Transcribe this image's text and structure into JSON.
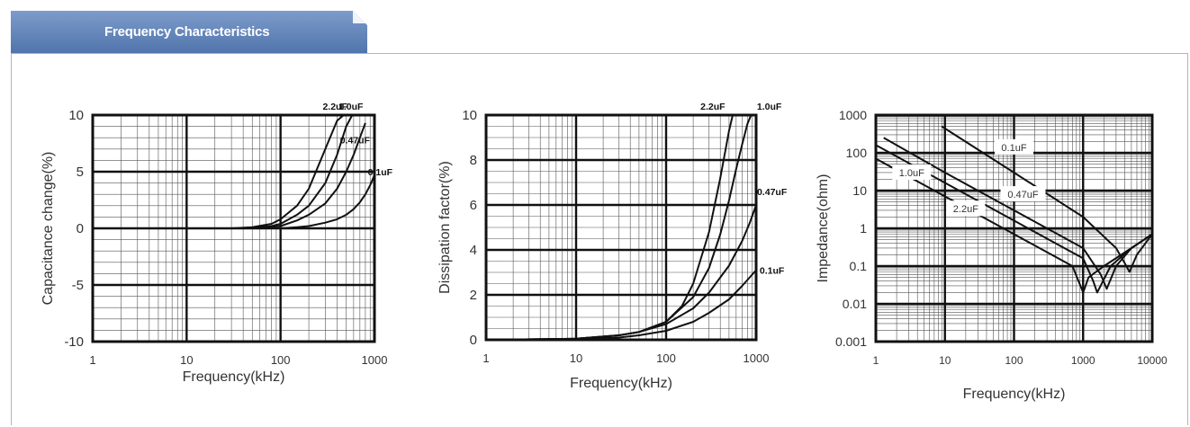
{
  "header": {
    "title": "Frequency Characteristics",
    "accent_color": "#5a7fb5",
    "border_color": "#a9b6c9"
  },
  "chart_data": [
    {
      "type": "line",
      "xscale": "log",
      "xlim": [
        1,
        1000
      ],
      "ylim": [
        -10,
        10
      ],
      "xticks": [
        "1",
        "10",
        "100",
        "1000"
      ],
      "yticks": [
        "10",
        "5",
        "0",
        "-5",
        "-10"
      ],
      "xlabel": "Frequency(kHz)",
      "ylabel": "Capacitance change(%)",
      "series": [
        {
          "name": "2.2uF",
          "x": [
            1,
            30,
            50,
            80,
            100,
            150,
            200,
            300,
            400,
            470
          ],
          "y": [
            0,
            0,
            0.1,
            0.4,
            0.8,
            2,
            3.5,
            7,
            9.5,
            10
          ]
        },
        {
          "name": "1.0uF",
          "x": [
            1,
            40,
            80,
            100,
            150,
            200,
            300,
            400,
            500,
            580
          ],
          "y": [
            0,
            0,
            0.2,
            0.4,
            1.2,
            2,
            4,
            6.5,
            9,
            10
          ]
        },
        {
          "name": "0.47uF",
          "x": [
            1,
            50,
            100,
            150,
            200,
            300,
            400,
            500,
            600,
            700,
            800
          ],
          "y": [
            0,
            0,
            0.2,
            0.7,
            1.2,
            2.2,
            3.5,
            5,
            6.5,
            8,
            9.3
          ]
        },
        {
          "name": "0.1uF",
          "x": [
            1,
            100,
            150,
            200,
            300,
            400,
            500,
            600,
            700,
            800,
            900,
            1000
          ],
          "y": [
            0,
            0,
            0.1,
            0.2,
            0.5,
            0.8,
            1.2,
            1.7,
            2.3,
            3,
            3.8,
            4.7
          ]
        }
      ],
      "labels": [
        {
          "text": "2.2uF",
          "x": 380,
          "y": 10.8
        },
        {
          "text": "1.0uF",
          "x": 560,
          "y": 10.8
        },
        {
          "text": "0.47uF",
          "x": 620,
          "y": 7.8
        },
        {
          "text": "0.1uF",
          "x": 1150,
          "y": 5.0
        }
      ]
    },
    {
      "type": "line",
      "xscale": "log",
      "xlim": [
        1,
        1000
      ],
      "ylim": [
        0,
        10
      ],
      "xticks": [
        "1",
        "10",
        "100",
        "1000"
      ],
      "yticks": [
        "10",
        "8",
        "6",
        "4",
        "2",
        "0"
      ],
      "xlabel": "Frequency(kHz)",
      "ylabel": "Dissipation factor(%)",
      "series": [
        {
          "name": "2.2uF",
          "x": [
            1,
            10,
            30,
            50,
            100,
            150,
            200,
            300,
            400,
            500,
            550
          ],
          "y": [
            0,
            0.05,
            0.2,
            0.35,
            0.8,
            1.5,
            2.5,
            4.8,
            7.2,
            9.3,
            10
          ]
        },
        {
          "name": "1.0uF",
          "x": [
            1,
            10,
            30,
            50,
            100,
            200,
            300,
            400,
            500,
            600,
            700,
            800,
            880
          ],
          "y": [
            0,
            0.05,
            0.2,
            0.35,
            0.8,
            1.9,
            3.2,
            4.7,
            6.2,
            7.6,
            8.7,
            9.6,
            10
          ]
        },
        {
          "name": "0.47uF",
          "x": [
            1,
            10,
            30,
            50,
            100,
            200,
            300,
            500,
            700,
            850,
            1000
          ],
          "y": [
            0,
            0.05,
            0.2,
            0.35,
            0.7,
            1.4,
            2.1,
            3.3,
            4.4,
            5.2,
            6
          ]
        },
        {
          "name": "0.1uF",
          "x": [
            1,
            10,
            30,
            50,
            100,
            200,
            300,
            500,
            700,
            1000
          ],
          "y": [
            0,
            0.03,
            0.1,
            0.2,
            0.4,
            0.8,
            1.2,
            1.8,
            2.4,
            3.1
          ]
        }
      ],
      "labels": [
        {
          "text": "2.2uF",
          "x": 330,
          "y": 10.4
        },
        {
          "text": "1.0uF",
          "x": 1400,
          "y": 10.4
        },
        {
          "text": "0.47uF",
          "x": 1500,
          "y": 6.6
        },
        {
          "text": "0.1uF",
          "x": 1500,
          "y": 3.1
        }
      ]
    },
    {
      "type": "line",
      "xscale": "log",
      "yscale": "log",
      "xlim": [
        1,
        10000
      ],
      "ylim": [
        0.001,
        1000
      ],
      "xticks": [
        "1",
        "10",
        "100",
        "1000",
        "10000"
      ],
      "yticks": [
        "1000",
        "100",
        "10",
        "1",
        "0.1",
        "0.01",
        "0.001"
      ],
      "xlabel": "Frequency(kHz)",
      "ylabel": "Impedance(ohm)",
      "series": [
        {
          "name": "0.1uF",
          "x": [
            9,
            100,
            1000,
            3000,
            4000,
            4700,
            6000,
            10000
          ],
          "y": [
            500,
            30,
            2,
            0.3,
            0.12,
            0.07,
            0.2,
            0.7
          ]
        },
        {
          "name": "0.47uF",
          "x": [
            1.3,
            10,
            100,
            1000,
            1800,
            2200,
            3000,
            5000,
            10000
          ],
          "y": [
            250,
            30,
            3,
            0.3,
            0.06,
            0.025,
            0.1,
            0.3,
            0.7
          ]
        },
        {
          "name": "1.0uF",
          "x": [
            1,
            10,
            100,
            1000,
            1400,
            1600,
            2500,
            5000,
            10000
          ],
          "y": [
            160,
            16,
            1.6,
            0.16,
            0.04,
            0.02,
            0.1,
            0.3,
            0.7
          ]
        },
        {
          "name": "2.2uF",
          "x": [
            1,
            10,
            100,
            700,
            1000,
            1200,
            2000,
            5000,
            10000
          ],
          "y": [
            70,
            7,
            0.7,
            0.1,
            0.02,
            0.05,
            0.1,
            0.3,
            0.7
          ]
        }
      ],
      "labels": [
        {
          "text": "0.1uF",
          "x": 100,
          "y": 140
        },
        {
          "text": "1.0uF",
          "x": 3.3,
          "y": 30
        },
        {
          "text": "0.47uF",
          "x": 135,
          "y": 8
        },
        {
          "text": "2.2uF",
          "x": 20,
          "y": 3.3
        }
      ]
    }
  ]
}
